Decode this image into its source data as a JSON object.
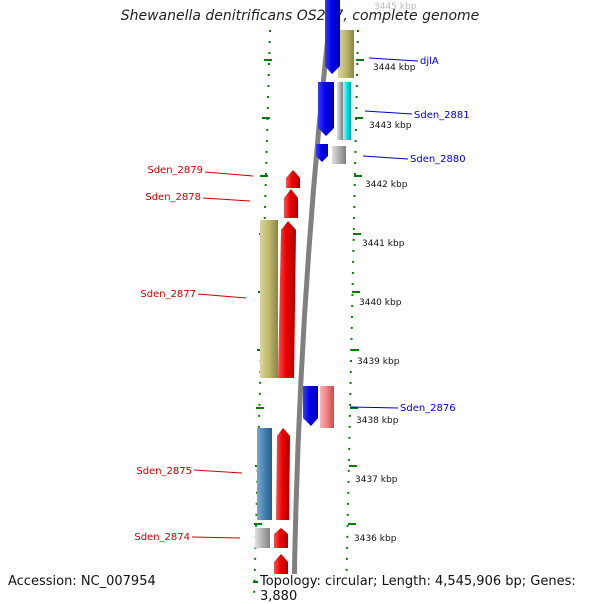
{
  "title": "Shewanella denitrificans OS217, complete genome",
  "accession": "Accession: NC_007954",
  "topology": "Topology: circular; Length: 4,545,906 bp; Genes: 3,880",
  "ticks": [
    {
      "label": "3445 kbp",
      "kbp": 3445
    },
    {
      "label": "3444 kbp",
      "kbp": 3444
    },
    {
      "label": "3443 kbp",
      "kbp": 3443
    },
    {
      "label": "3442 kbp",
      "kbp": 3442
    },
    {
      "label": "3441 kbp",
      "kbp": 3441
    },
    {
      "label": "3440 kbp",
      "kbp": 3440
    },
    {
      "label": "3439 kbp",
      "kbp": 3439
    },
    {
      "label": "3438 kbp",
      "kbp": 3438
    },
    {
      "label": "3437 kbp",
      "kbp": 3437
    },
    {
      "label": "3436 kbp",
      "kbp": 3436
    }
  ],
  "genes_right": [
    {
      "name": "djlA",
      "color": "#0000cc"
    },
    {
      "name": "Sden_2881",
      "color": "#0000cc"
    },
    {
      "name": "Sden_2880",
      "color": "#0000cc"
    },
    {
      "name": "Sden_2876",
      "color": "#0000cc"
    }
  ],
  "genes_left": [
    {
      "name": "Sden_2879",
      "color": "#cc0000"
    },
    {
      "name": "Sden_2878",
      "color": "#cc0000"
    },
    {
      "name": "Sden_2877",
      "color": "#cc0000"
    },
    {
      "name": "Sden_2875",
      "color": "#cc0000"
    },
    {
      "name": "Sden_2874",
      "color": "#cc0000"
    }
  ],
  "colors": {
    "forward_cds": "#ee0000",
    "reverse_cds": "#0000ee",
    "cog_khaki": "#bdb76b",
    "cog_steelblue": "#4682b4",
    "cog_pink": "#f08080",
    "cog_cyan": "#00e5ee",
    "cog_gray": "#b0b0b0",
    "dotted_ring": "#0a7a0a",
    "backbone": "#808080"
  }
}
